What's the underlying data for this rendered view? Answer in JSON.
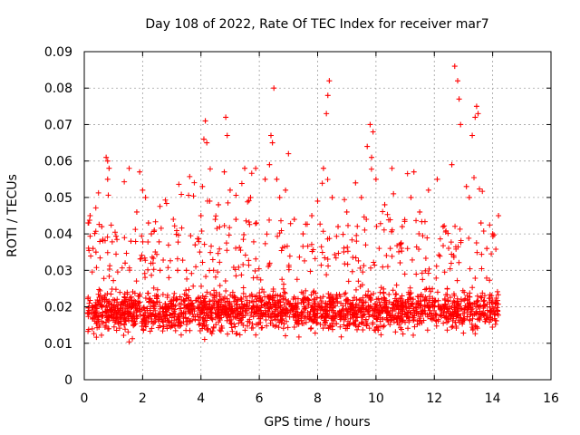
{
  "chart_data": {
    "type": "scatter",
    "title": "Day 108 of 2022, Rate Of TEC Index for receiver mar7",
    "xlabel": "GPS time / hours",
    "ylabel": "ROTI / TECUs",
    "xlim": [
      0,
      16
    ],
    "ylim": [
      0,
      0.09
    ],
    "xticks": [
      0,
      2,
      4,
      6,
      8,
      10,
      12,
      14,
      16
    ],
    "xtick_labels": [
      "0",
      "2",
      "4",
      "6",
      "8",
      "10",
      "12",
      "14",
      "16"
    ],
    "yticks": [
      0,
      0.01,
      0.02,
      0.03,
      0.04,
      0.05,
      0.06,
      0.07,
      0.08,
      0.09
    ],
    "ytick_labels": [
      "0",
      "0.01",
      "0.02",
      "0.03",
      "0.04",
      "0.05",
      "0.06",
      "0.07",
      "0.08",
      "0.09"
    ],
    "grid": true,
    "marker": "plus",
    "color": "#ff0000",
    "series": [
      {
        "name": "ROTI",
        "points": [
          [
            0.15,
            0.043
          ],
          [
            0.2,
            0.045
          ],
          [
            0.3,
            0.036
          ],
          [
            0.4,
            0.035
          ],
          [
            0.6,
            0.042
          ],
          [
            0.75,
            0.061
          ],
          [
            0.8,
            0.06
          ],
          [
            0.85,
            0.058
          ],
          [
            0.8,
            0.055
          ],
          [
            1.4,
            0.032
          ],
          [
            1.6,
            0.038
          ],
          [
            1.8,
            0.046
          ],
          [
            1.9,
            0.057
          ],
          [
            2.0,
            0.052
          ],
          [
            2.1,
            0.05
          ],
          [
            2.2,
            0.043
          ],
          [
            2.3,
            0.04
          ],
          [
            2.4,
            0.041
          ],
          [
            2.6,
            0.03
          ],
          [
            2.9,
            0.028
          ],
          [
            3.2,
            0.03
          ],
          [
            3.5,
            0.03
          ],
          [
            3.8,
            0.037
          ],
          [
            4.0,
            0.045
          ],
          [
            4.05,
            0.053
          ],
          [
            4.1,
            0.066
          ],
          [
            4.15,
            0.071
          ],
          [
            4.2,
            0.065
          ],
          [
            4.3,
            0.049
          ],
          [
            4.6,
            0.048
          ],
          [
            4.8,
            0.057
          ],
          [
            4.85,
            0.072
          ],
          [
            4.9,
            0.067
          ],
          [
            5.0,
            0.052
          ],
          [
            5.2,
            0.044
          ],
          [
            5.5,
            0.058
          ],
          [
            5.7,
            0.05
          ],
          [
            5.9,
            0.043
          ],
          [
            6.2,
            0.055
          ],
          [
            6.35,
            0.059
          ],
          [
            6.4,
            0.067
          ],
          [
            6.45,
            0.065
          ],
          [
            6.5,
            0.08
          ],
          [
            6.6,
            0.055
          ],
          [
            6.7,
            0.05
          ],
          [
            6.9,
            0.052
          ],
          [
            7.0,
            0.062
          ],
          [
            7.2,
            0.044
          ],
          [
            7.5,
            0.04
          ],
          [
            7.8,
            0.045
          ],
          [
            8.0,
            0.049
          ],
          [
            8.2,
            0.058
          ],
          [
            8.3,
            0.073
          ],
          [
            8.35,
            0.078
          ],
          [
            8.4,
            0.082
          ],
          [
            8.5,
            0.05
          ],
          [
            8.7,
            0.042
          ],
          [
            9.0,
            0.046
          ],
          [
            9.3,
            0.054
          ],
          [
            9.5,
            0.05
          ],
          [
            9.7,
            0.064
          ],
          [
            9.8,
            0.07
          ],
          [
            9.85,
            0.061
          ],
          [
            9.9,
            0.068
          ],
          [
            10.0,
            0.055
          ],
          [
            10.3,
            0.048
          ],
          [
            10.6,
            0.051
          ],
          [
            10.9,
            0.042
          ],
          [
            11.2,
            0.05
          ],
          [
            11.3,
            0.057
          ],
          [
            11.5,
            0.046
          ],
          [
            11.8,
            0.052
          ],
          [
            12.1,
            0.055
          ],
          [
            12.3,
            0.042
          ],
          [
            12.6,
            0.059
          ],
          [
            12.7,
            0.086
          ],
          [
            12.8,
            0.082
          ],
          [
            12.85,
            0.077
          ],
          [
            12.9,
            0.07
          ],
          [
            13.1,
            0.053
          ],
          [
            13.2,
            0.05
          ],
          [
            13.3,
            0.067
          ],
          [
            13.4,
            0.072
          ],
          [
            13.45,
            0.075
          ],
          [
            13.5,
            0.073
          ],
          [
            13.6,
            0.043
          ],
          [
            13.8,
            0.036
          ],
          [
            14.0,
            0.04
          ],
          [
            14.2,
            0.045
          ]
        ]
      }
    ]
  }
}
